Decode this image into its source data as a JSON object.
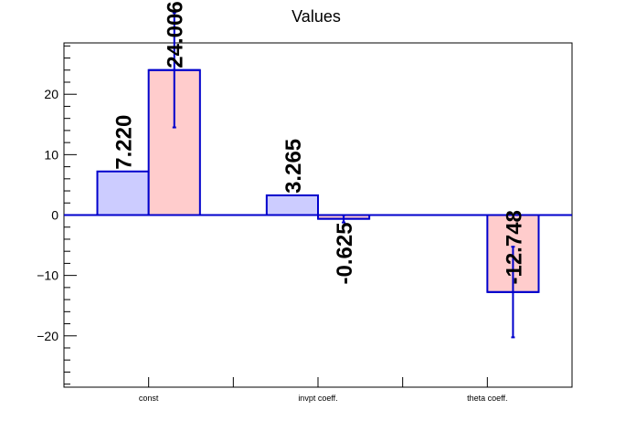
{
  "chart_data": {
    "type": "bar",
    "title": "Values",
    "xlabel": "",
    "ylabel": "",
    "ylim": [
      -28.5,
      28.5
    ],
    "yticks": [
      -20,
      -10,
      0,
      10,
      20
    ],
    "ytick_labels": [
      "−20",
      "−10",
      "0",
      "10",
      "20"
    ],
    "categories": [
      "const",
      "invpt coeff.",
      "theta coeff."
    ],
    "series": [
      {
        "color_fill": "#ccccff",
        "color_line": "#0000cc",
        "values": [
          7.22,
          3.265,
          null
        ],
        "labels": [
          "7.220",
          "3.265",
          ""
        ],
        "errors": [
          null,
          null,
          null
        ]
      },
      {
        "color_fill": "#ffcccc",
        "color_line": "#0000cc",
        "values": [
          24.006,
          -0.625,
          -12.748
        ],
        "labels": [
          "24.006",
          "-0.625",
          "-12.748"
        ],
        "errors": [
          9.5,
          0.6,
          7.5
        ]
      }
    ],
    "grid": false,
    "legend": "none"
  }
}
